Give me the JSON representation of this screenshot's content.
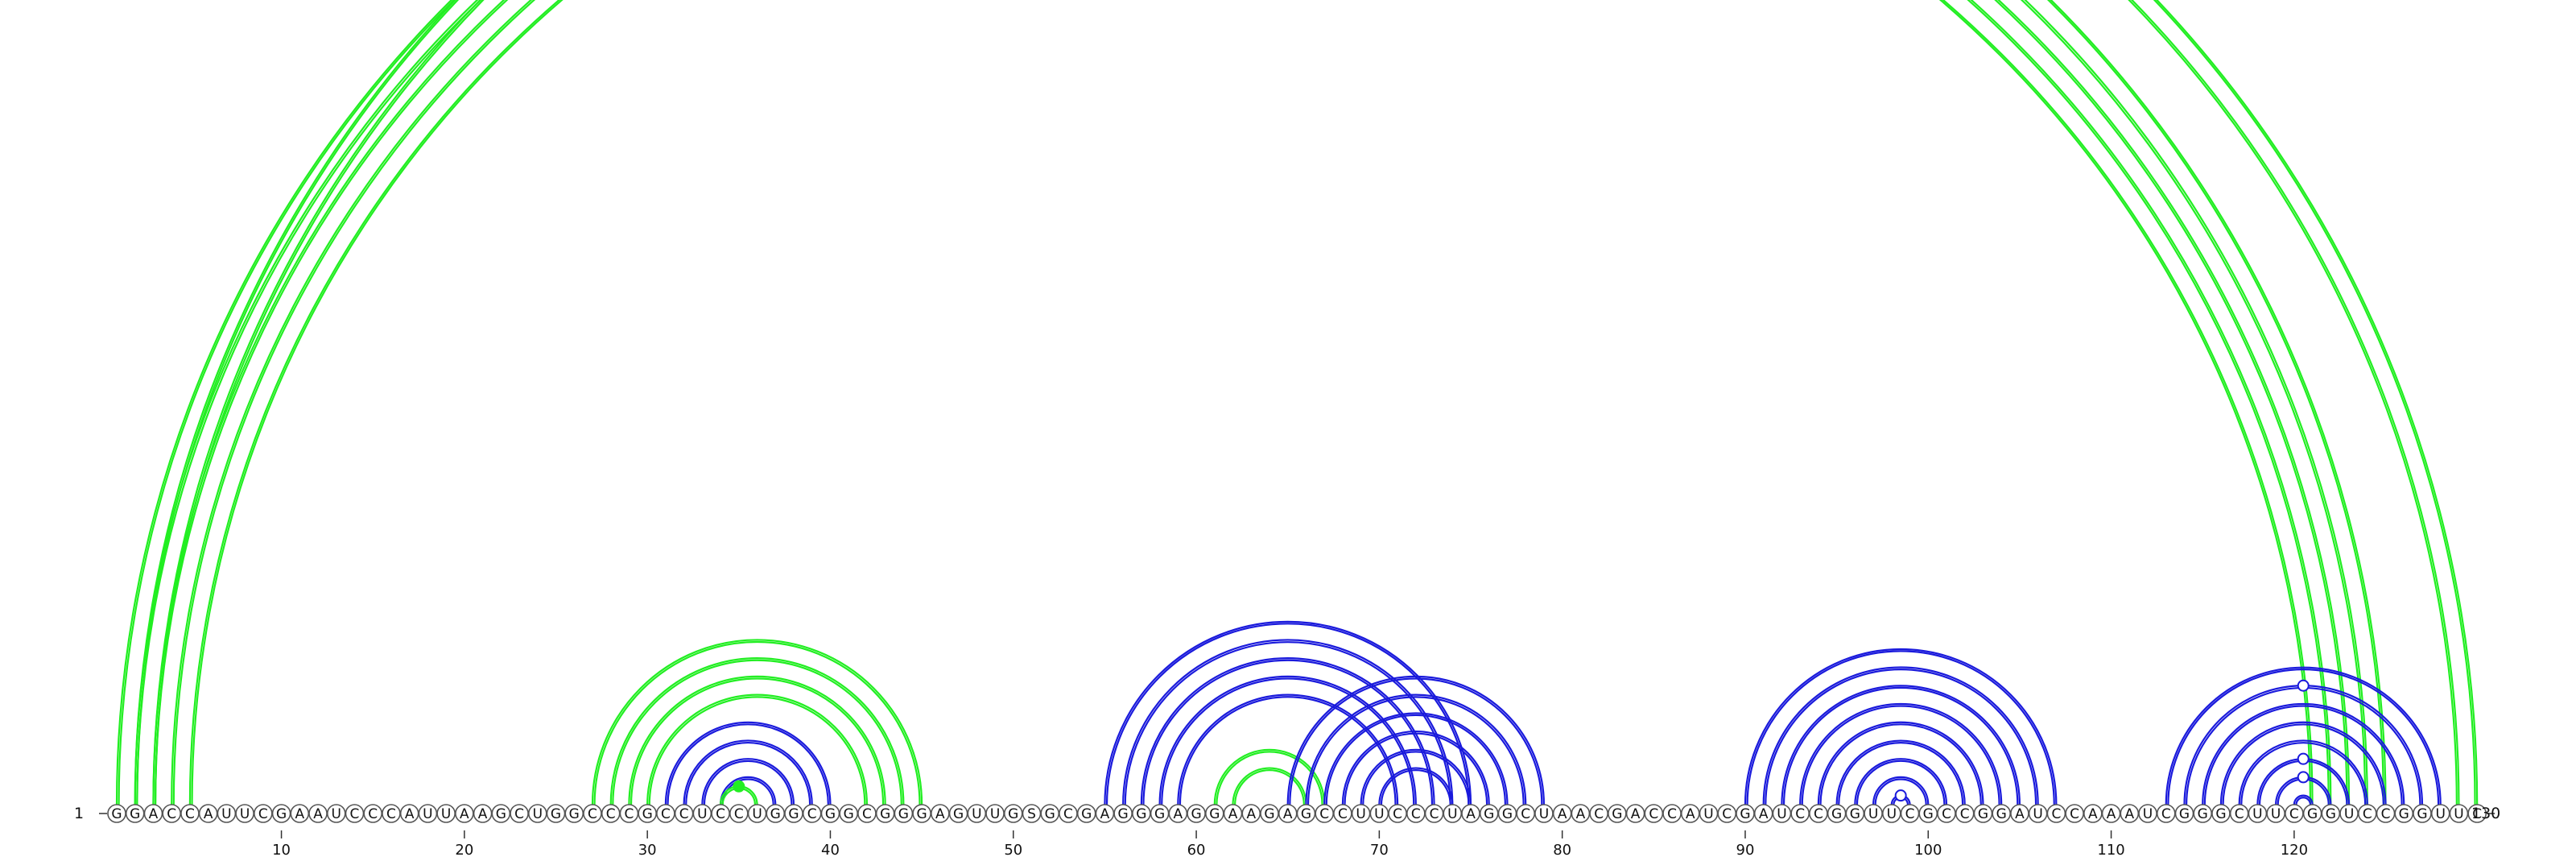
{
  "sequence": "GGACCAUUCGAAUCCCAUUAAGCUGGCCCGCCUCCUGGCGGCGGGAGUUGSGCGAGGGAGGAAGAGCCUUCCCUAGGCUAACGACCAUCGAUCCGGUUCGCCGGAUCCAAAUCGGGCUUCGGUCCGGUUC",
  "start_label": "1",
  "end_label": "130",
  "ticks": [
    10,
    20,
    30,
    40,
    50,
    60,
    70,
    80,
    90,
    100,
    110,
    120
  ],
  "colors": {
    "green": "#22ee22",
    "blue": "#1a1adc"
  },
  "helices": [
    {
      "color": "green",
      "pairs": [
        [
          1,
          125
        ],
        [
          2,
          124
        ],
        [
          3,
          123
        ],
        [
          4,
          122
        ],
        [
          5,
          121
        ]
      ]
    },
    {
      "color": "green",
      "pairs": [
        [
          2,
          130
        ],
        [
          3,
          129
        ]
      ]
    },
    {
      "color": "green",
      "pairs": [
        [
          27,
          45
        ],
        [
          28,
          44
        ],
        [
          29,
          43
        ],
        [
          30,
          42
        ]
      ]
    },
    {
      "color": "blue",
      "pairs": [
        [
          31,
          40
        ],
        [
          32,
          39
        ],
        [
          33,
          38
        ],
        [
          34,
          37
        ]
      ]
    },
    {
      "color": "green",
      "pairs": [
        [
          34,
          36
        ]
      ]
    },
    {
      "color": "blue",
      "pairs": [
        [
          55,
          75
        ],
        [
          56,
          74
        ],
        [
          57,
          73
        ],
        [
          58,
          72
        ],
        [
          59,
          71
        ]
      ]
    },
    {
      "color": "green",
      "pairs": [
        [
          61,
          67
        ],
        [
          62,
          66
        ]
      ]
    },
    {
      "color": "blue",
      "pairs": [
        [
          65,
          79
        ],
        [
          66,
          78
        ],
        [
          67,
          77
        ],
        [
          68,
          76
        ],
        [
          69,
          75
        ],
        [
          70,
          74
        ]
      ]
    },
    {
      "color": "blue",
      "pairs": [
        [
          90,
          107
        ],
        [
          91,
          106
        ],
        [
          92,
          105
        ],
        [
          93,
          104
        ],
        [
          94,
          103
        ],
        [
          95,
          102
        ],
        [
          96,
          101
        ],
        [
          97,
          100
        ],
        [
          98,
          99
        ]
      ]
    },
    {
      "color": "blue",
      "pairs": [
        [
          113,
          128
        ],
        [
          114,
          127
        ],
        [
          115,
          126
        ],
        [
          116,
          125
        ],
        [
          117,
          124
        ],
        [
          118,
          123
        ],
        [
          119,
          122
        ],
        [
          120,
          121
        ]
      ]
    }
  ],
  "markers": [
    {
      "i": 2,
      "j": 130,
      "filled": false,
      "color": "green"
    },
    {
      "i": 34,
      "j": 36,
      "filled": true,
      "color": "green"
    },
    {
      "i": 98,
      "j": 99,
      "filled": false,
      "color": "blue"
    },
    {
      "i": 119,
      "j": 122,
      "filled": false,
      "color": "blue"
    },
    {
      "i": 118,
      "j": 123,
      "filled": false,
      "color": "blue"
    },
    {
      "i": 114,
      "j": 127,
      "filled": false,
      "color": "blue"
    }
  ]
}
